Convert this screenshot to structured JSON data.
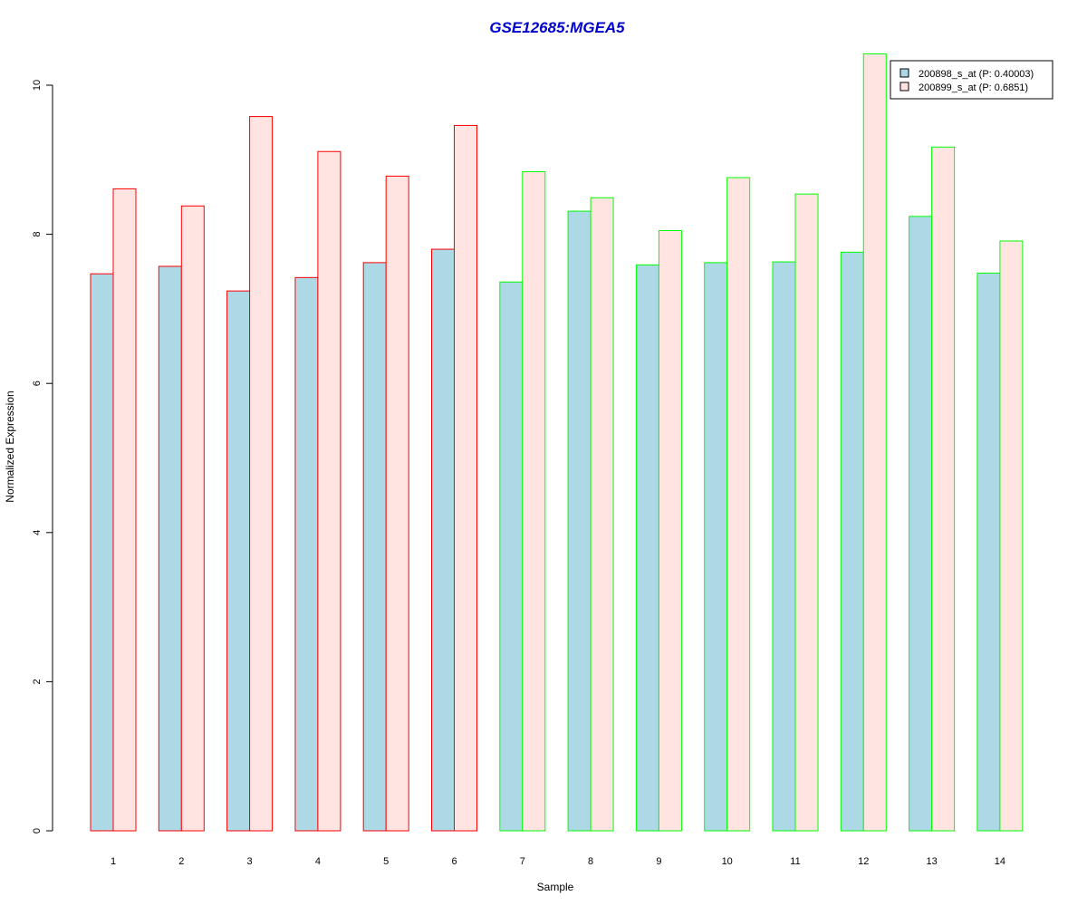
{
  "chart_data": {
    "type": "bar",
    "title": "GSE12685:MGEA5",
    "xlabel": "Sample",
    "ylabel": "Normalized Expression",
    "ylim": [
      0,
      10.5
    ],
    "yticks": [
      "0",
      "2",
      "4",
      "6",
      "8",
      "10"
    ],
    "categories": [
      "1",
      "2",
      "3",
      "4",
      "5",
      "6",
      "7",
      "8",
      "9",
      "10",
      "11",
      "12",
      "13",
      "14"
    ],
    "series": [
      {
        "name": "200898_s_at (P: 0.40003)",
        "fill": "#add8e6",
        "values": [
          7.47,
          7.57,
          7.24,
          7.42,
          7.62,
          7.8,
          7.36,
          8.31,
          7.59,
          7.62,
          7.63,
          7.76,
          8.24,
          7.48
        ]
      },
      {
        "name": "200899_s_at (P: 0.6851)",
        "fill": "#ffe4e1",
        "values": [
          8.61,
          8.38,
          9.58,
          9.11,
          8.78,
          9.46,
          8.84,
          8.49,
          8.05,
          8.76,
          8.54,
          10.42,
          9.17,
          7.91
        ]
      }
    ],
    "group_border_colors": [
      "#ff0000",
      "#ff0000",
      "#ff0000",
      "#ff0000",
      "#ff0000",
      "#ff0000",
      "#00ff00",
      "#00ff00",
      "#00ff00",
      "#00ff00",
      "#00ff00",
      "#00ff00",
      "#00ff00",
      "#00ff00"
    ],
    "title_color": "#0000cd",
    "legend_position": "top-right",
    "grid": false
  }
}
